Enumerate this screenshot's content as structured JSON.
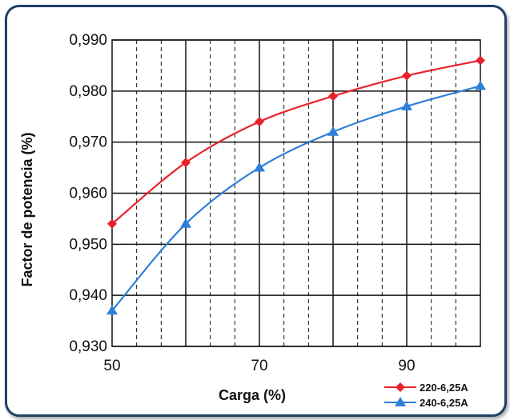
{
  "chart_data": {
    "type": "line",
    "xlabel": "Carga (%)",
    "ylabel": "Factor de potencia (%)",
    "xlim": [
      50,
      100
    ],
    "ylim": [
      0.93,
      0.99
    ],
    "x_ticks": [
      50,
      70,
      90
    ],
    "x_tick_labels": [
      "50",
      "70",
      "90"
    ],
    "y_ticks": [
      0.93,
      0.94,
      0.95,
      0.96,
      0.97,
      0.98,
      0.99
    ],
    "y_tick_labels": [
      "0,930",
      "0,940",
      "0,950",
      "0,960",
      "0,970",
      "0,980",
      "0,990"
    ],
    "grid": true,
    "legend_position": "bottom-right",
    "series": [
      {
        "name": "220-6,25A",
        "color": "#e8222b",
        "marker": "diamond",
        "x": [
          50,
          60,
          70,
          80,
          90,
          100
        ],
        "y": [
          0.954,
          0.966,
          0.974,
          0.979,
          0.983,
          0.986
        ]
      },
      {
        "name": "240-6,25A",
        "color": "#2e7fd9",
        "marker": "triangle",
        "x": [
          50,
          60,
          70,
          80,
          90,
          100
        ],
        "y": [
          0.937,
          0.954,
          0.965,
          0.972,
          0.977,
          0.981
        ]
      }
    ]
  }
}
